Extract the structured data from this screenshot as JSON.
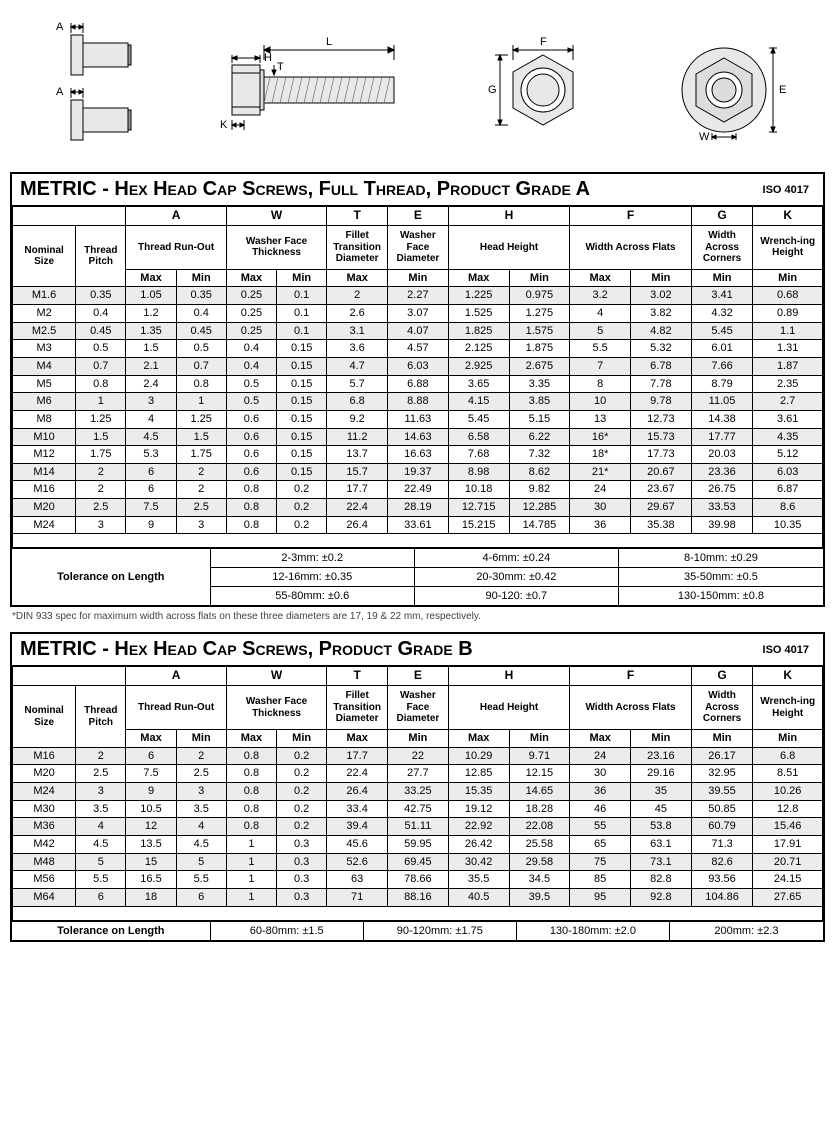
{
  "diagrams": {
    "labels": {
      "A": "A",
      "H": "H",
      "L": "L",
      "T": "T",
      "K": "K",
      "F": "F",
      "G": "G",
      "W": "W",
      "E": "E"
    }
  },
  "tableA": {
    "title": "METRIC - Hex Head Cap Screws, Full Thread, Product Grade A",
    "iso": "ISO 4017",
    "letters": [
      "A",
      "W",
      "T",
      "E",
      "H",
      "F",
      "G",
      "K"
    ],
    "descs": [
      "Nominal Size",
      "Thread Pitch",
      "Thread Run-Out",
      "Washer Face Thickness",
      "Fillet Transition Diameter",
      "Washer Face Diameter",
      "Head Height",
      "Width Across Flats",
      "Width Across Corners",
      "Wrench-ing Height"
    ],
    "subs": [
      "Max",
      "Min",
      "Max",
      "Min",
      "Max",
      "Min",
      "Max",
      "Min",
      "Max",
      "Min",
      "Min",
      "Min"
    ],
    "rows": [
      [
        "M1.6",
        "0.35",
        "1.05",
        "0.35",
        "0.25",
        "0.1",
        "2",
        "2.27",
        "1.225",
        "0.975",
        "3.2",
        "3.02",
        "3.41",
        "0.68"
      ],
      [
        "M2",
        "0.4",
        "1.2",
        "0.4",
        "0.25",
        "0.1",
        "2.6",
        "3.07",
        "1.525",
        "1.275",
        "4",
        "3.82",
        "4.32",
        "0.89"
      ],
      [
        "M2.5",
        "0.45",
        "1.35",
        "0.45",
        "0.25",
        "0.1",
        "3.1",
        "4.07",
        "1.825",
        "1.575",
        "5",
        "4.82",
        "5.45",
        "1.1"
      ],
      [
        "M3",
        "0.5",
        "1.5",
        "0.5",
        "0.4",
        "0.15",
        "3.6",
        "4.57",
        "2.125",
        "1.875",
        "5.5",
        "5.32",
        "6.01",
        "1.31"
      ],
      [
        "M4",
        "0.7",
        "2.1",
        "0.7",
        "0.4",
        "0.15",
        "4.7",
        "6.03",
        "2.925",
        "2.675",
        "7",
        "6.78",
        "7.66",
        "1.87"
      ],
      [
        "M5",
        "0.8",
        "2.4",
        "0.8",
        "0.5",
        "0.15",
        "5.7",
        "6.88",
        "3.65",
        "3.35",
        "8",
        "7.78",
        "8.79",
        "2.35"
      ],
      [
        "M6",
        "1",
        "3",
        "1",
        "0.5",
        "0.15",
        "6.8",
        "8.88",
        "4.15",
        "3.85",
        "10",
        "9.78",
        "11.05",
        "2.7"
      ],
      [
        "M8",
        "1.25",
        "4",
        "1.25",
        "0.6",
        "0.15",
        "9.2",
        "11.63",
        "5.45",
        "5.15",
        "13",
        "12.73",
        "14.38",
        "3.61"
      ],
      [
        "M10",
        "1.5",
        "4.5",
        "1.5",
        "0.6",
        "0.15",
        "11.2",
        "14.63",
        "6.58",
        "6.22",
        "16*",
        "15.73",
        "17.77",
        "4.35"
      ],
      [
        "M12",
        "1.75",
        "5.3",
        "1.75",
        "0.6",
        "0.15",
        "13.7",
        "16.63",
        "7.68",
        "7.32",
        "18*",
        "17.73",
        "20.03",
        "5.12"
      ],
      [
        "M14",
        "2",
        "6",
        "2",
        "0.6",
        "0.15",
        "15.7",
        "19.37",
        "8.98",
        "8.62",
        "21*",
        "20.67",
        "23.36",
        "6.03"
      ],
      [
        "M16",
        "2",
        "6",
        "2",
        "0.8",
        "0.2",
        "17.7",
        "22.49",
        "10.18",
        "9.82",
        "24",
        "23.67",
        "26.75",
        "6.87"
      ],
      [
        "M20",
        "2.5",
        "7.5",
        "2.5",
        "0.8",
        "0.2",
        "22.4",
        "28.19",
        "12.715",
        "12.285",
        "30",
        "29.67",
        "33.53",
        "8.6"
      ],
      [
        "M24",
        "3",
        "9",
        "3",
        "0.8",
        "0.2",
        "26.4",
        "33.61",
        "15.215",
        "14.785",
        "36",
        "35.38",
        "39.98",
        "10.35"
      ]
    ],
    "tolLabel": "Tolerance on Length",
    "tolGrid": [
      [
        "2-3mm: ±0.2",
        "4-6mm: ±0.24",
        "8-10mm: ±0.29"
      ],
      [
        "12-16mm: ±0.35",
        "20-30mm: ±0.42",
        "35-50mm: ±0.5"
      ],
      [
        "55-80mm: ±0.6",
        "90-120: ±0.7",
        "130-150mm: ±0.8"
      ]
    ],
    "footnote": "*DIN 933 spec for maximum width across flats on these three diameters are 17, 19 & 22 mm, respectively."
  },
  "tableB": {
    "title": "METRIC - Hex Head Cap Screws, Product Grade B",
    "iso": "ISO 4017",
    "letters": [
      "A",
      "W",
      "T",
      "E",
      "H",
      "F",
      "G",
      "K"
    ],
    "descs": [
      "Nominal Size",
      "Thread Pitch",
      "Thread Run-Out",
      "Washer Face Thickness",
      "Fillet Transition Diameter",
      "Washer Face Diameter",
      "Head Height",
      "Width Across Flats",
      "Width Across Corners",
      "Wrench-ing Height"
    ],
    "subs": [
      "Max",
      "Min",
      "Max",
      "Min",
      "Max",
      "Min",
      "Max",
      "Min",
      "Max",
      "Min",
      "Min",
      "Min"
    ],
    "rows": [
      [
        "M16",
        "2",
        "6",
        "2",
        "0.8",
        "0.2",
        "17.7",
        "22",
        "10.29",
        "9.71",
        "24",
        "23.16",
        "26.17",
        "6.8"
      ],
      [
        "M20",
        "2.5",
        "7.5",
        "2.5",
        "0.8",
        "0.2",
        "22.4",
        "27.7",
        "12.85",
        "12.15",
        "30",
        "29.16",
        "32.95",
        "8.51"
      ],
      [
        "M24",
        "3",
        "9",
        "3",
        "0.8",
        "0.2",
        "26.4",
        "33.25",
        "15.35",
        "14.65",
        "36",
        "35",
        "39.55",
        "10.26"
      ],
      [
        "M30",
        "3.5",
        "10.5",
        "3.5",
        "0.8",
        "0.2",
        "33.4",
        "42.75",
        "19.12",
        "18.28",
        "46",
        "45",
        "50.85",
        "12.8"
      ],
      [
        "M36",
        "4",
        "12",
        "4",
        "0.8",
        "0.2",
        "39.4",
        "51.11",
        "22.92",
        "22.08",
        "55",
        "53.8",
        "60.79",
        "15.46"
      ],
      [
        "M42",
        "4.5",
        "13.5",
        "4.5",
        "1",
        "0.3",
        "45.6",
        "59.95",
        "26.42",
        "25.58",
        "65",
        "63.1",
        "71.3",
        "17.91"
      ],
      [
        "M48",
        "5",
        "15",
        "5",
        "1",
        "0.3",
        "52.6",
        "69.45",
        "30.42",
        "29.58",
        "75",
        "73.1",
        "82.6",
        "20.71"
      ],
      [
        "M56",
        "5.5",
        "16.5",
        "5.5",
        "1",
        "0.3",
        "63",
        "78.66",
        "35.5",
        "34.5",
        "85",
        "82.8",
        "93.56",
        "24.15"
      ],
      [
        "M64",
        "6",
        "18",
        "6",
        "1",
        "0.3",
        "71",
        "88.16",
        "40.5",
        "39.5",
        "95",
        "92.8",
        "104.86",
        "27.65"
      ]
    ],
    "tolLabel": "Tolerance on Length",
    "tolGrid": [
      [
        "60-80mm: ±1.5",
        "90-120mm: ±1.75",
        "130-180mm: ±2.0",
        "200mm: ±2.3"
      ]
    ]
  },
  "colWidths": [
    "7.8%",
    "6.2%",
    "6.2%",
    "6.2%",
    "6.2%",
    "6.2%",
    "7.5%",
    "7.5%",
    "7.5%",
    "7.5%",
    "7.5%",
    "7.5%",
    "7.6%",
    "8.6%"
  ]
}
